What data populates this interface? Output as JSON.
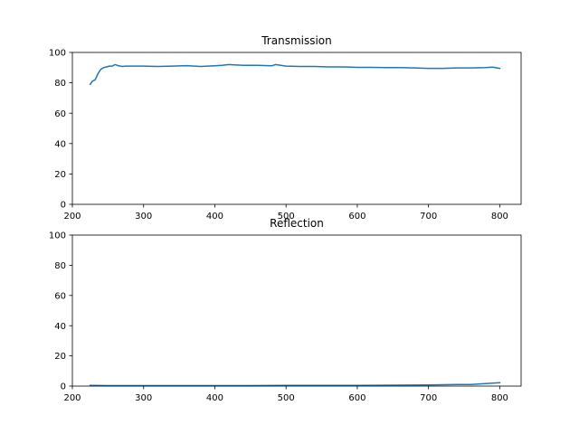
{
  "colors": {
    "series": "#1f77b4",
    "axes": "#000000",
    "background": "#ffffff"
  },
  "chart_data": [
    {
      "type": "line",
      "title": "Transmission",
      "xlabel": "",
      "ylabel": "",
      "xlim": [
        200,
        830
      ],
      "ylim": [
        0,
        100
      ],
      "xticks": [
        200,
        300,
        400,
        500,
        600,
        700,
        800
      ],
      "yticks": [
        0,
        20,
        40,
        60,
        80,
        100
      ],
      "grid": false,
      "series": [
        {
          "x": [
            225,
            228,
            232,
            236,
            240,
            244,
            248,
            252,
            256,
            260,
            265,
            270,
            275,
            280,
            290,
            300,
            320,
            340,
            360,
            380,
            400,
            410,
            420,
            440,
            460,
            480,
            485,
            500,
            520,
            540,
            560,
            580,
            600,
            620,
            640,
            660,
            680,
            700,
            720,
            740,
            760,
            780,
            790,
            800
          ],
          "y": [
            79,
            81,
            82,
            86,
            89,
            90,
            90.5,
            91,
            91,
            92,
            91.2,
            90.8,
            91,
            91,
            91,
            91,
            90.8,
            91,
            91.3,
            90.8,
            91.2,
            91.5,
            92,
            91.5,
            91.5,
            91.2,
            92,
            91,
            90.8,
            90.8,
            90.5,
            90.5,
            90.2,
            90.2,
            90,
            90,
            89.8,
            89.5,
            89.5,
            89.8,
            89.8,
            90,
            90.3,
            89.5
          ]
        }
      ]
    },
    {
      "type": "line",
      "title": "Reflection",
      "xlabel": "",
      "ylabel": "",
      "xlim": [
        200,
        830
      ],
      "ylim": [
        0,
        100
      ],
      "xticks": [
        200,
        300,
        400,
        500,
        600,
        700,
        800
      ],
      "yticks": [
        0,
        20,
        40,
        60,
        80,
        100
      ],
      "grid": false,
      "series": [
        {
          "x": [
            225,
            250,
            300,
            350,
            400,
            450,
            500,
            550,
            600,
            650,
            700,
            720,
            740,
            760,
            770,
            780,
            790,
            800
          ],
          "y": [
            0.4,
            0.3,
            0.3,
            0.3,
            0.3,
            0.3,
            0.4,
            0.4,
            0.5,
            0.6,
            0.8,
            0.9,
            1.0,
            1.1,
            1.3,
            1.6,
            1.9,
            2.2
          ]
        }
      ]
    }
  ]
}
